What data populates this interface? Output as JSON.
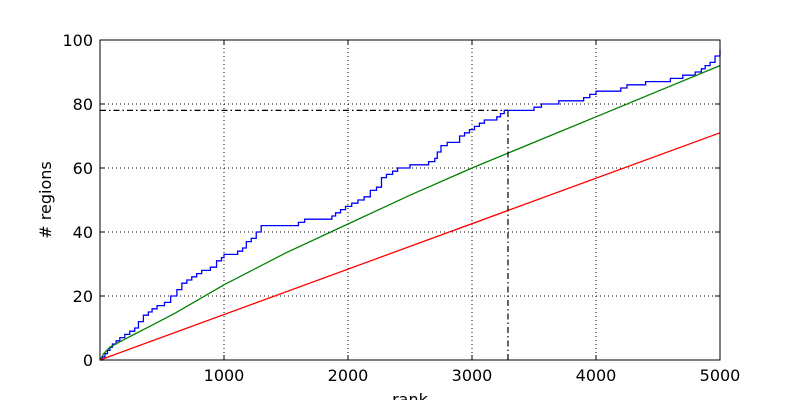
{
  "chart_data": {
    "type": "line",
    "xlabel": "rank",
    "ylabel": "# regions",
    "xlim": [
      0,
      5000
    ],
    "ylim": [
      0,
      100
    ],
    "x_ticks": [
      1000,
      2000,
      3000,
      4000,
      5000
    ],
    "y_ticks": [
      0,
      20,
      40,
      60,
      80,
      100
    ],
    "grid": true,
    "legend": "none",
    "series": [
      {
        "color": "#0000ff",
        "style": "step",
        "x": [
          0,
          20,
          40,
          60,
          80,
          100,
          130,
          160,
          200,
          240,
          280,
          310,
          350,
          390,
          420,
          460,
          520,
          570,
          620,
          660,
          700,
          740,
          780,
          820,
          850,
          890,
          940,
          980,
          1000,
          1060,
          1110,
          1150,
          1180,
          1220,
          1260,
          1300,
          1350,
          1400,
          1500,
          1600,
          1650,
          1700,
          1800,
          1870,
          1900,
          1940,
          1980,
          2030,
          2080,
          2130,
          2180,
          2230,
          2270,
          2310,
          2360,
          2400,
          2450,
          2500,
          2550,
          2600,
          2650,
          2700,
          2720,
          2750,
          2800,
          2850,
          2900,
          2940,
          2980,
          3020,
          3060,
          3100,
          3150,
          3200,
          3230,
          3260,
          3300,
          3350,
          3400,
          3500,
          3560,
          3600,
          3700,
          3750,
          3900,
          3950,
          4000,
          4100,
          4200,
          4250,
          4300,
          4400,
          4500,
          4600,
          4700,
          4750,
          4800,
          4850,
          4880,
          4920,
          4960,
          5000
        ],
        "y": [
          0,
          1,
          2,
          3,
          4,
          5,
          6,
          7,
          8,
          9,
          10,
          12,
          14,
          15,
          16,
          17,
          18,
          20,
          22,
          24,
          25,
          26,
          27,
          28,
          28,
          29,
          31,
          32,
          33,
          33,
          34,
          35,
          37,
          38,
          40,
          42,
          42,
          42,
          42,
          43,
          44,
          44,
          44,
          45,
          46,
          47,
          48,
          49,
          50,
          51,
          53,
          54,
          57,
          58,
          59,
          60,
          60,
          61,
          61,
          61,
          62,
          63,
          65,
          67,
          68,
          68,
          70,
          71,
          72,
          73,
          74,
          75,
          75,
          76,
          77,
          78,
          78,
          78,
          78,
          79,
          80,
          80,
          81,
          81,
          82,
          83,
          84,
          84,
          85,
          86,
          86,
          87,
          87,
          88,
          89,
          89,
          90,
          91,
          92,
          93,
          95,
          97
        ]
      },
      {
        "color": "#008000",
        "style": "line",
        "x": [
          0,
          30,
          80,
          150,
          250,
          400,
          600,
          800,
          1000,
          1500,
          2000,
          2500,
          3000,
          3500,
          4000,
          4500,
          5000
        ],
        "y": [
          0,
          2,
          4,
          5.5,
          7.5,
          10.5,
          14.5,
          19,
          23.5,
          33.5,
          42.5,
          51.5,
          60,
          68,
          76,
          84,
          92
        ]
      },
      {
        "color": "#ff0000",
        "style": "line",
        "x": [
          0,
          5000
        ],
        "y": [
          0,
          71
        ]
      }
    ],
    "reference_lines": [
      {
        "color": "#000000",
        "style": "dashdot",
        "orientation": "horizontal",
        "value": 78,
        "from": 0,
        "to": 3290
      },
      {
        "color": "#000000",
        "style": "dashdot",
        "orientation": "vertical",
        "value": 3290,
        "from": 0,
        "to": 78
      }
    ]
  }
}
